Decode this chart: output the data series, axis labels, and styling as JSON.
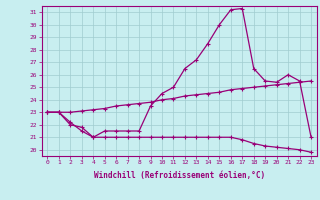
{
  "xlabel": "Windchill (Refroidissement éolien,°C)",
  "x_ticks": [
    0,
    1,
    2,
    3,
    4,
    5,
    6,
    7,
    8,
    9,
    10,
    11,
    12,
    13,
    14,
    15,
    16,
    17,
    18,
    19,
    20,
    21,
    22,
    23
  ],
  "ylim": [
    19.5,
    31.5
  ],
  "yticks": [
    20,
    21,
    22,
    23,
    24,
    25,
    26,
    27,
    28,
    29,
    30,
    31
  ],
  "xlim": [
    -0.5,
    23.5
  ],
  "bg_color": "#c8eef0",
  "line_color": "#990077",
  "grid_color": "#a0ccd0",
  "line1_x": [
    0,
    1,
    2,
    3,
    4,
    5,
    6,
    7,
    8,
    9,
    10,
    11,
    12,
    13,
    14,
    15,
    16,
    17,
    18,
    19,
    20,
    21,
    22,
    23
  ],
  "line1_y": [
    23.0,
    23.0,
    22.2,
    21.5,
    21.0,
    21.5,
    21.5,
    21.5,
    21.5,
    23.5,
    24.5,
    25.0,
    26.5,
    27.2,
    28.5,
    30.0,
    31.2,
    31.3,
    26.5,
    25.5,
    25.4,
    26.0,
    25.5,
    21.0
  ],
  "line2_x": [
    0,
    1,
    2,
    3,
    4,
    5,
    6,
    7,
    8,
    9,
    10,
    11,
    12,
    13,
    14,
    15,
    16,
    17,
    18,
    19,
    20,
    21,
    22,
    23
  ],
  "line2_y": [
    23.0,
    23.0,
    23.0,
    23.1,
    23.2,
    23.3,
    23.5,
    23.6,
    23.7,
    23.8,
    24.0,
    24.1,
    24.3,
    24.4,
    24.5,
    24.6,
    24.8,
    24.9,
    25.0,
    25.1,
    25.2,
    25.3,
    25.4,
    25.5
  ],
  "line3_x": [
    0,
    1,
    2,
    3,
    4,
    5,
    6,
    7,
    8,
    9,
    10,
    11,
    12,
    13,
    14,
    15,
    16,
    17,
    18,
    19,
    20,
    21,
    22,
    23
  ],
  "line3_y": [
    23.0,
    23.0,
    22.0,
    21.8,
    21.0,
    21.0,
    21.0,
    21.0,
    21.0,
    21.0,
    21.0,
    21.0,
    21.0,
    21.0,
    21.0,
    21.0,
    21.0,
    20.8,
    20.5,
    20.3,
    20.2,
    20.1,
    20.0,
    19.8
  ],
  "xlabel_fontsize": 5.5,
  "tick_fontsize": 4.5,
  "linewidth": 0.9,
  "markersize": 3.5
}
